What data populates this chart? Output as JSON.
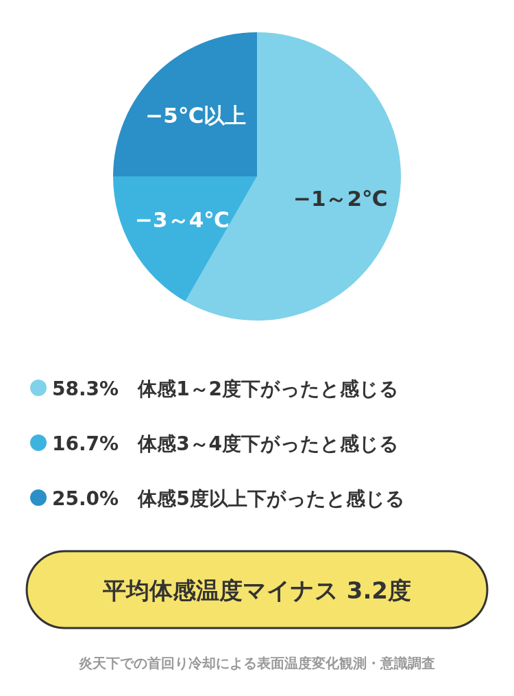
{
  "chart_data": {
    "type": "pie",
    "categories": [
      "−1～2℃",
      "−3～4℃",
      "−5℃以上"
    ],
    "values": [
      58.3,
      16.7,
      25.0
    ],
    "colors": [
      "#7fd2e9",
      "#3db4df",
      "#2a90c7"
    ],
    "annotations": [
      "58.3%　体感1～2度下がったと感じる",
      "16.7%　体感3～4度下がったと感じる",
      "25.0%　体感5度以上下がったと感じる",
      "平均体感温度マイナス 3.2度",
      "炎天下での首回り冷却による表面温度変化観測・意識調査"
    ]
  }
}
